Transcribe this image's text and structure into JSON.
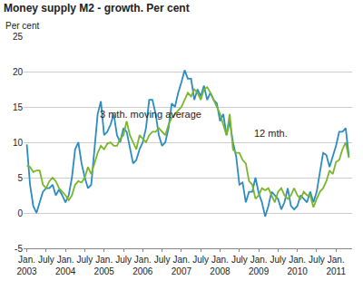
{
  "chart_data": {
    "type": "line",
    "title": "Money supply M2 - growth. Per cent",
    "y_label": "Per cent",
    "categories": [
      "Jan. 2003",
      null,
      null,
      null,
      null,
      null,
      "July",
      null,
      null,
      null,
      null,
      null,
      "Jan. 2004",
      null,
      null,
      null,
      null,
      null,
      "July",
      null,
      null,
      null,
      null,
      null,
      "Jan. 2005",
      null,
      null,
      null,
      null,
      null,
      "July",
      null,
      null,
      null,
      null,
      null,
      "Jan. 2006",
      null,
      null,
      null,
      null,
      null,
      "July",
      null,
      null,
      null,
      null,
      null,
      "Jan. 2007",
      null,
      null,
      null,
      null,
      null,
      "July",
      null,
      null,
      null,
      null,
      null,
      "Jan. 2008",
      null,
      null,
      null,
      null,
      null,
      "July",
      null,
      null,
      null,
      null,
      null,
      "Jan. 2009",
      null,
      null,
      null,
      null,
      null,
      "July",
      null,
      null,
      null,
      null,
      null,
      "Jan. 2010",
      null,
      null,
      null,
      null,
      null,
      "July",
      null,
      null,
      null,
      null,
      null,
      "Jan. 2011",
      null,
      null,
      null,
      null
    ],
    "series": [
      {
        "name": "3 mth. moving average",
        "color": "#2b8cc4",
        "values": [
          9.7,
          4,
          1,
          0,
          1.5,
          3,
          3.5,
          3.5,
          4,
          2.5,
          3.3,
          2.5,
          1.5,
          2.5,
          5,
          9,
          10,
          7,
          5,
          3.5,
          4,
          9,
          14,
          15.8,
          11,
          11.5,
          12.5,
          14,
          11,
          10,
          12,
          11.5,
          9,
          7,
          7.5,
          9,
          10,
          12,
          16,
          16,
          14,
          11,
          9.5,
          10,
          12,
          15.5,
          15,
          17,
          18.5,
          20.2,
          19,
          19,
          16,
          17.5,
          16.5,
          18,
          16,
          17,
          16,
          15.5,
          13,
          14,
          11,
          13,
          10,
          8,
          4,
          4.3,
          1.5,
          3,
          3,
          5,
          2.8,
          1.5,
          -0.5,
          1,
          3,
          2.5,
          2,
          0.5,
          1.5,
          3.5,
          1,
          0.5,
          1,
          2.5,
          2,
          1.5,
          3,
          1.5,
          3,
          6,
          8.5,
          8.2,
          6.5,
          8,
          9.5,
          11.5,
          11.5,
          12,
          8
        ]
      },
      {
        "name": "12 mth.",
        "color": "#7ab62a",
        "values": [
          6.7,
          6.5,
          5.8,
          6,
          6,
          4,
          3.5,
          4.5,
          5,
          4.5,
          3.5,
          3,
          2.5,
          1.8,
          2.5,
          4,
          4.5,
          4.3,
          5,
          6.5,
          5.5,
          7,
          8.5,
          9.5,
          9,
          9.8,
          10,
          9.5,
          9.5,
          10.5,
          11,
          13,
          11,
          10,
          9,
          11,
          10.5,
          10,
          11,
          11.5,
          11.5,
          12,
          11.5,
          11,
          12.5,
          13.5,
          14,
          14.5,
          15,
          16,
          17,
          16.5,
          17.5,
          17,
          16,
          17.5,
          17.8,
          17,
          16,
          15,
          14,
          12.5,
          11,
          14,
          9,
          8.5,
          8.5,
          7.5,
          7,
          4.5,
          4,
          2,
          2.5,
          3.5,
          3.2,
          3.5,
          2.5,
          1.5,
          3,
          3.5,
          2.5,
          2,
          2.5,
          3.5,
          2.5,
          2,
          3,
          2.5,
          2.5,
          0.8,
          2,
          3,
          3.5,
          4.5,
          6,
          5.5,
          7.2,
          7.5,
          9,
          10,
          7.8
        ]
      }
    ],
    "annotations": [
      {
        "text": "3 mth. moving average",
        "x": 22,
        "y": 14
      },
      {
        "text": "12 mth.",
        "x": 70,
        "y": 11.3
      }
    ],
    "ylim": [
      -5,
      25
    ],
    "yticks": [
      -5,
      0,
      5,
      10,
      15,
      20,
      25
    ],
    "grid": true
  }
}
